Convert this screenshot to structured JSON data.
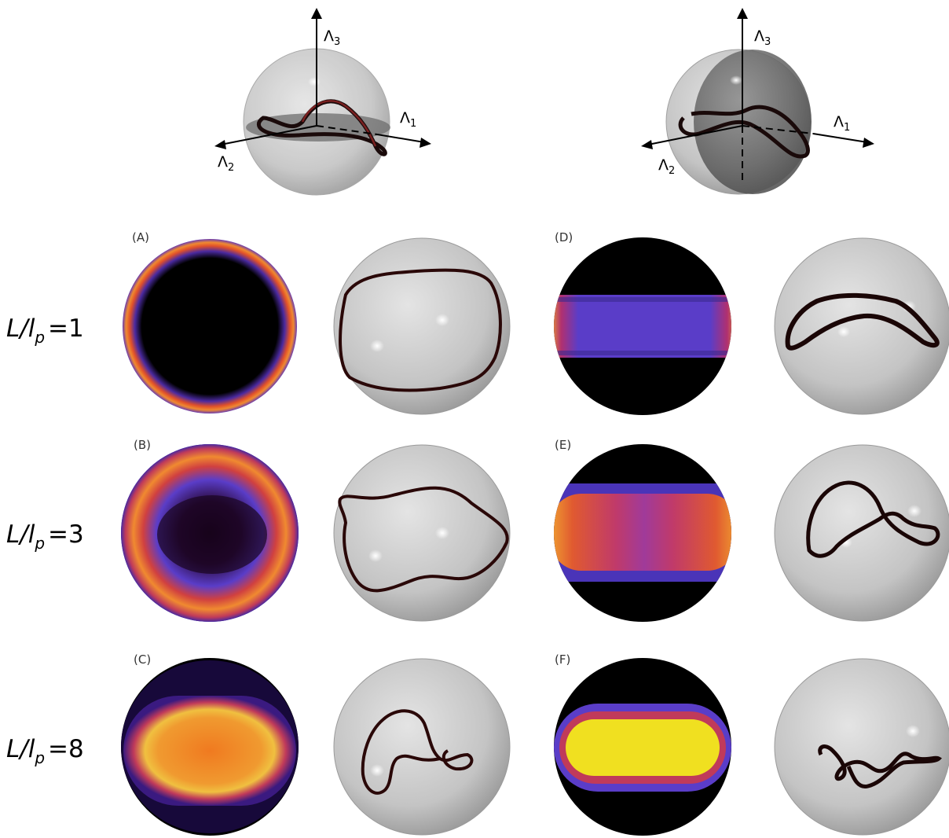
{
  "axes": {
    "lambda1": "Λ1",
    "lambda2": "Λ2",
    "lambda3": "Λ3",
    "lambda1_base": "Λ",
    "lambda1_sub": "1",
    "lambda2_base": "Λ",
    "lambda2_sub": "2",
    "lambda3_base": "Λ",
    "lambda3_sub": "3"
  },
  "rows": [
    {
      "label_var": "L/l",
      "label_sub": "p",
      "label_eq": "=",
      "label_val": "1"
    },
    {
      "label_var": "L/l",
      "label_sub": "p",
      "label_eq": "=",
      "label_val": "3"
    },
    {
      "label_var": "L/l",
      "label_sub": "p",
      "label_eq": "=",
      "label_val": "8"
    }
  ],
  "panels": [
    "(A)",
    "(B)",
    "(C)",
    "(D)",
    "(E)",
    "(F)"
  ],
  "colors": {
    "sphere_fill": "#c8c8c8",
    "polymer": "#5a1414",
    "heat_black": "#000000",
    "heat_purple": "#5a3dc8",
    "heat_orange": "#f07a20",
    "heat_yellow": "#f0e020"
  }
}
